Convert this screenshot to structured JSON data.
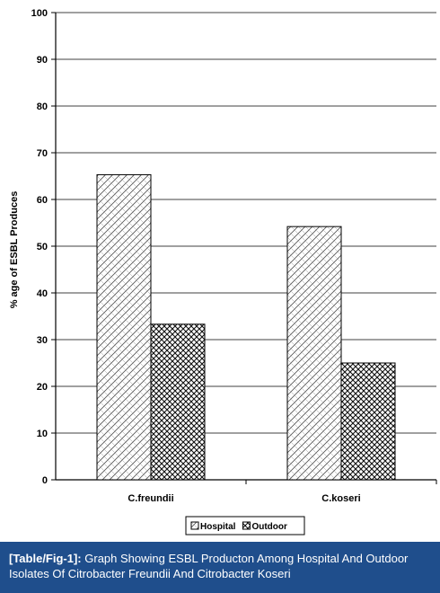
{
  "chart_data": {
    "type": "bar",
    "categories": [
      "C.freundii",
      "C.koseri"
    ],
    "series": [
      {
        "name": "Hospital",
        "values": [
          65.3,
          54.2
        ]
      },
      {
        "name": "Outdoor",
        "values": [
          33.3,
          25.0
        ]
      }
    ],
    "ylabel": "% age of ESBL Produces",
    "xlabel": "",
    "ylim": [
      0,
      100
    ],
    "yticks": [
      0,
      10,
      20,
      30,
      40,
      50,
      60,
      70,
      80,
      90,
      100
    ],
    "grid": true,
    "legend": "bottom-center"
  },
  "caption": {
    "tag": "[Table/Fig-1]:",
    "text": " Graph Showing ESBL Producton Among Hospital And Outdoor Isolates Of Citrobacter Freundii And Citrobacter Koseri"
  }
}
